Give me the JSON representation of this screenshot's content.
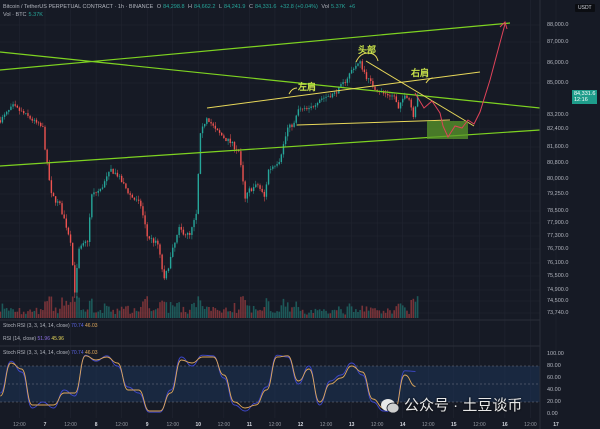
{
  "header": {
    "symbol": "Bitcoin / TetherUS PERPETUAL CONTRACT · 1h · BINANCE",
    "open_label": "O",
    "open": "84,298.8",
    "high_label": "H",
    "high": "84,662.2",
    "low_label": "L",
    "low": "84,241.9",
    "close_label": "C",
    "close": "84,331.6",
    "change": "+32.8 (+0.04%)",
    "vol_label": "Vol",
    "vol": "5.37K",
    "vol_change": "+6",
    "vol_btc_label": "Vol · BTC",
    "vol_btc": "5.37K"
  },
  "price_axis": {
    "currency": "USDT",
    "ticks": [
      "88,000.0",
      "87,000.0",
      "86,000.0",
      "85,000.0",
      "83,200.0",
      "82,400.0",
      "81,600.0",
      "80,800.0",
      "80,000.0",
      "79,250.0",
      "78,500.0",
      "77,900.0",
      "77,300.0",
      "76,700.0",
      "76,100.0",
      "75,500.0",
      "74,900.0",
      "74,500.0",
      "73,740.0"
    ],
    "last_price": "84,331.6",
    "countdown": "12:16"
  },
  "time_axis": [
    "12:00",
    "7",
    "12:00",
    "8",
    "12:00",
    "9",
    "12:00",
    "10",
    "12:00",
    "11",
    "12:00",
    "12",
    "12:00",
    "13",
    "12:00",
    "14",
    "12:00",
    "15",
    "12:00",
    "16",
    "12:00",
    "17"
  ],
  "annotations": {
    "left_shoulder": "左肩",
    "head": "头部",
    "right_shoulder": "右肩"
  },
  "indicators": {
    "stoch1": {
      "label": "Stoch RSI (3, 3, 14, 14, close)",
      "k": "70.74",
      "d": "46.03"
    },
    "rsi": {
      "label": "RSI (14, close)",
      "v1": "51.96",
      "v2": "45.96"
    },
    "stoch2": {
      "label": "Stoch RSI (3, 3, 14, 14, close)",
      "k": "70.74",
      "d": "46.03"
    },
    "axis": [
      "100.00",
      "80.00",
      "60.00",
      "40.00",
      "20.00",
      "0.00"
    ]
  },
  "watermark": "公众号 · 土豆谈币",
  "colors": {
    "up": "#26a69a",
    "down": "#ef5350",
    "trendline": "#7ed321",
    "neckline": "#e8d85a",
    "projection": "#e0435a",
    "stoch_k": "#3f48cc",
    "stoch_d": "#e0a85a"
  },
  "chart_data": {
    "type": "candlestick",
    "interval": "1h",
    "price_path": [
      [
        "6 03:00",
        82900
      ],
      [
        "6 09:00",
        83700
      ],
      [
        "6 15:00",
        83200
      ],
      [
        "6 23:00",
        82450
      ],
      [
        "7 01:00",
        80700
      ],
      [
        "7 03:00",
        79200
      ],
      [
        "7 07:00",
        78750
      ],
      [
        "7 12:00",
        77100
      ],
      [
        "7 14:00",
        74900
      ],
      [
        "7 16:00",
        76650
      ],
      [
        "7 20:00",
        77100
      ],
      [
        "7 22:00",
        79200
      ],
      [
        "8 02:00",
        79450
      ],
      [
        "8 07:00",
        80450
      ],
      [
        "8 10:00",
        80200
      ],
      [
        "8 16:00",
        79200
      ],
      [
        "8 21:00",
        78750
      ],
      [
        "9 00:00",
        77300
      ],
      [
        "9 05:00",
        76900
      ],
      [
        "9 08:00",
        75300
      ],
      [
        "9 12:00",
        76650
      ],
      [
        "9 15:00",
        77600
      ],
      [
        "9 20:00",
        77300
      ],
      [
        "9 23:00",
        78300
      ],
      [
        "10 01:00",
        82100
      ],
      [
        "10 04:00",
        83100
      ],
      [
        "10 08:00",
        82350
      ],
      [
        "10 15:00",
        81800
      ],
      [
        "10 19:00",
        81400
      ],
      [
        "10 22:00",
        79000
      ],
      [
        "11 00:00",
        79450
      ],
      [
        "11 04:00",
        79700
      ],
      [
        "11 07:00",
        79100
      ],
      [
        "11 09:00",
        80450
      ],
      [
        "11 14:00",
        80950
      ],
      [
        "11 18:00",
        82450
      ],
      [
        "11 21:00",
        82700
      ],
      [
        "11 23:00",
        83500
      ],
      [
        "12 04:00",
        83500
      ],
      [
        "12 09:00",
        84100
      ],
      [
        "12 16:00",
        84400
      ],
      [
        "12 21:00",
        85100
      ],
      [
        "13 01:00",
        85800
      ],
      [
        "13 04:00",
        86000
      ],
      [
        "13 07:00",
        85300
      ],
      [
        "13 11:00",
        84700
      ],
      [
        "13 15:00",
        84400
      ],
      [
        "13 20:00",
        84250
      ],
      [
        "13 22:00",
        83500
      ],
      [
        "14 01:00",
        84400
      ],
      [
        "14 03:00",
        84100
      ],
      [
        "14 05:00",
        83200
      ],
      [
        "14 07:00",
        84331.6
      ]
    ],
    "stoch_rsi": {
      "start": "6 03:00",
      "step_hours": 5,
      "k": [
        35,
        88,
        70,
        10,
        20,
        10,
        40,
        30,
        98,
        88,
        97,
        80,
        45,
        35,
        3,
        3,
        40,
        95,
        80,
        98,
        97,
        60,
        15,
        5,
        18,
        45,
        98,
        95,
        50,
        80,
        15,
        55,
        65,
        85,
        65,
        20,
        5,
        3,
        72,
        71
      ],
      "d": [
        30,
        85,
        75,
        15,
        15,
        15,
        35,
        35,
        97,
        90,
        95,
        85,
        40,
        40,
        5,
        5,
        35,
        90,
        85,
        95,
        95,
        65,
        20,
        10,
        15,
        40,
        95,
        97,
        55,
        75,
        20,
        50,
        60,
        80,
        70,
        25,
        10,
        5,
        65,
        46
      ]
    },
    "volume_unit": "BTC"
  }
}
